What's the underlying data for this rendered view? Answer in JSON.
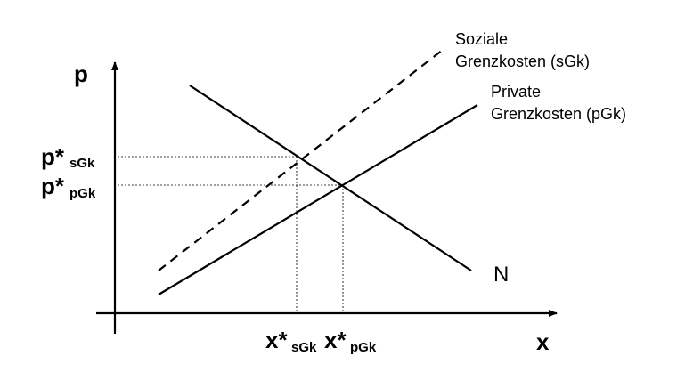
{
  "axes": {
    "y_label": "p",
    "x_label": "x"
  },
  "price_labels": {
    "social": {
      "main": "p*",
      "sub": "sGk"
    },
    "private": {
      "main": "p*",
      "sub": "pGk"
    }
  },
  "quantity_labels": {
    "social": {
      "main": "x*",
      "sub": "sGk"
    },
    "private": {
      "main": "x*",
      "sub": "pGk"
    }
  },
  "curves": {
    "social_cost": {
      "line1": "Soziale",
      "line2": "Grenzkosten (sGk)",
      "style": "dashed"
    },
    "private_cost": {
      "line1": "Private",
      "line2": "Grenzkosten (pGk)",
      "style": "solid"
    },
    "demand": {
      "label": "N",
      "style": "solid"
    }
  },
  "colors": {
    "line": "#000000",
    "background": "#ffffff"
  }
}
